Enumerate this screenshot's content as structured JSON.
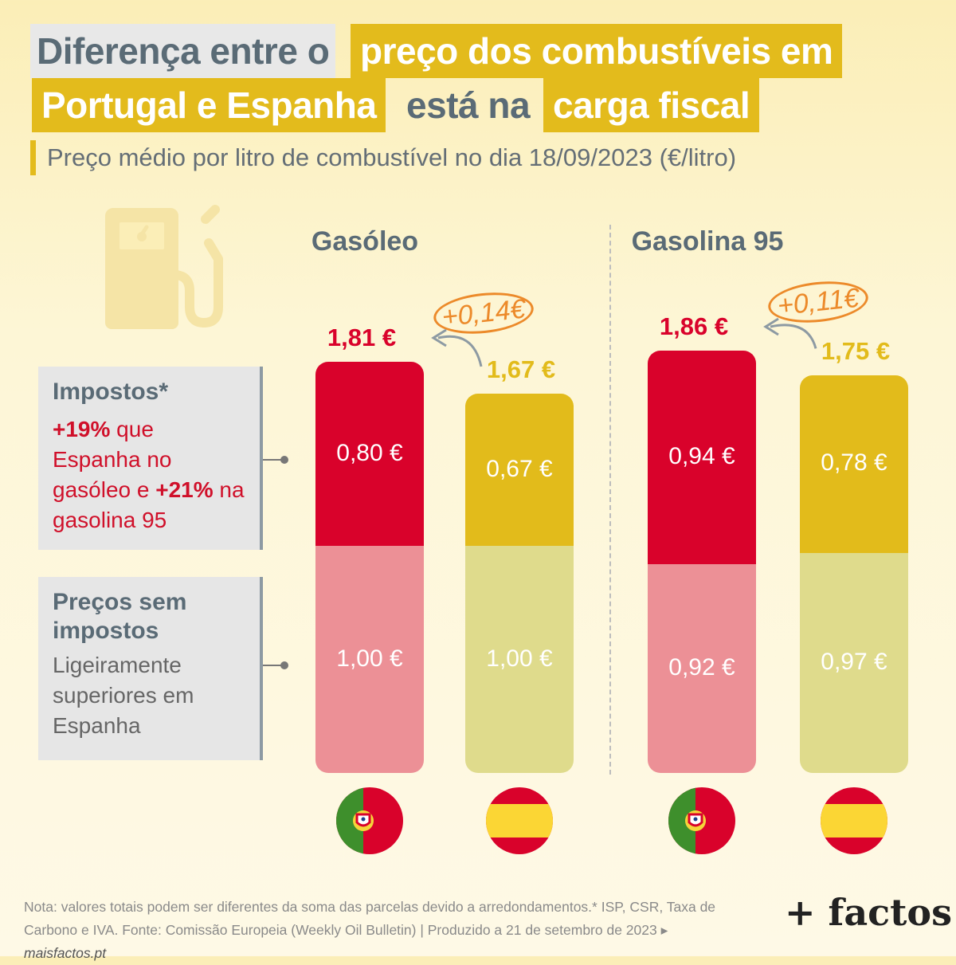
{
  "title": {
    "line1_part1": "Diferença entre o",
    "line1_part2": "preço dos combustíveis em",
    "line2_part1": "Portugal e Espanha",
    "line2_part2": "está na",
    "line2_part3": "carga fiscal"
  },
  "subtitle": "Preço médio por litro de combustível no dia 18/09/2023 (€/litro)",
  "legend": {
    "taxes_title": "Impostos*",
    "taxes_desc_1": "+19%",
    "taxes_desc_2": " que Espanha no gasóleo e ",
    "taxes_desc_3": "+21%",
    "taxes_desc_4": " na gasolina 95",
    "pretax_title": "Preços sem impostos",
    "pretax_desc": "Ligeiramente superiores em Espanha"
  },
  "colors": {
    "portugal_tax": "#d9022b",
    "portugal_pretax": "#ec9096",
    "spain_tax": "#e2bb1b",
    "spain_pretax": "#dfdb8c",
    "title_highlight": "#e3bb1c",
    "difference": "#ec8a2a"
  },
  "chart_data": {
    "type": "bar",
    "stacked": true,
    "unit": "€/litro",
    "panels": [
      {
        "name": "Gasóleo",
        "difference_label": "+0,14€",
        "bars": [
          {
            "country": "Portugal",
            "total": 1.81,
            "total_label": "1,81 €",
            "tax": 0.8,
            "tax_label": "0,80 €",
            "pretax": 1.0,
            "pretax_label": "1,00 €",
            "flag_icon": "portugal-flag-icon"
          },
          {
            "country": "Espanha",
            "total": 1.67,
            "total_label": "1,67 €",
            "tax": 0.67,
            "tax_label": "0,67 €",
            "pretax": 1.0,
            "pretax_label": "1,00 €",
            "flag_icon": "spain-flag-icon"
          }
        ]
      },
      {
        "name": "Gasolina 95",
        "difference_label": "+0,11€",
        "bars": [
          {
            "country": "Portugal",
            "total": 1.86,
            "total_label": "1,86 €",
            "tax": 0.94,
            "tax_label": "0,94 €",
            "pretax": 0.92,
            "pretax_label": "0,92 €",
            "flag_icon": "portugal-flag-icon"
          },
          {
            "country": "Espanha",
            "total": 1.75,
            "total_label": "1,75 €",
            "tax": 0.78,
            "tax_label": "0,78 €",
            "pretax": 0.97,
            "pretax_label": "0,97 €",
            "flag_icon": "spain-flag-icon"
          }
        ]
      }
    ]
  },
  "note": {
    "text": "Nota: valores totais podem ser diferentes da soma das parcelas devido a arredondamentos.* ISP, CSR, Taxa de Carbono e IVA. Fonte: Comissão Europeia (Weekly Oil Bulletin)  |  Produzido a 21 de setembro de 2023 ▸ ",
    "link": "maisfactos.pt"
  },
  "logo": "+ factos",
  "icons": [
    "fuel-pump-icon",
    "curved-arrow-icon",
    "portugal-flag-icon",
    "spain-flag-icon"
  ]
}
